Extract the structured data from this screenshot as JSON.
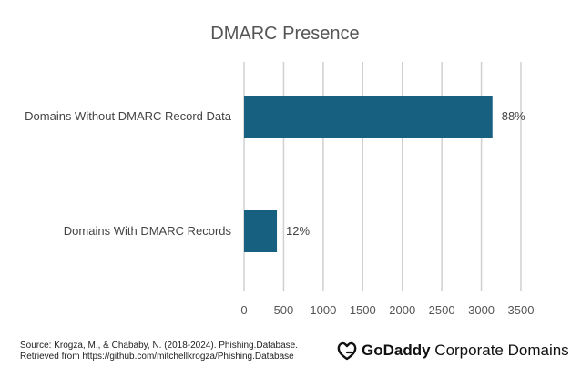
{
  "chart_data": {
    "type": "bar",
    "orientation": "horizontal",
    "title": "DMARC Presence",
    "categories": [
      "Domains Without DMARC Record Data",
      "Domains With DMARC Records"
    ],
    "values": [
      3140,
      415
    ],
    "data_labels": [
      "88%",
      "12%"
    ],
    "xlim": [
      0,
      3500
    ],
    "x_ticks": [
      "0",
      "500",
      "1000",
      "1500",
      "2000",
      "2500",
      "3000",
      "3500"
    ],
    "grid": "vertical",
    "bar_color": "#17607f",
    "grid_color": "#d0d0d0"
  },
  "footer": {
    "source_line1": "Source: Krogza, M., & Chababy, N. (2018-2024). Phishing.Database.",
    "source_line2": "Retrieved from  https://github.com/mitchellkrogza/Phishing.Database",
    "brand_bold": "GoDaddy",
    "brand_rest": " Corporate Domains"
  }
}
